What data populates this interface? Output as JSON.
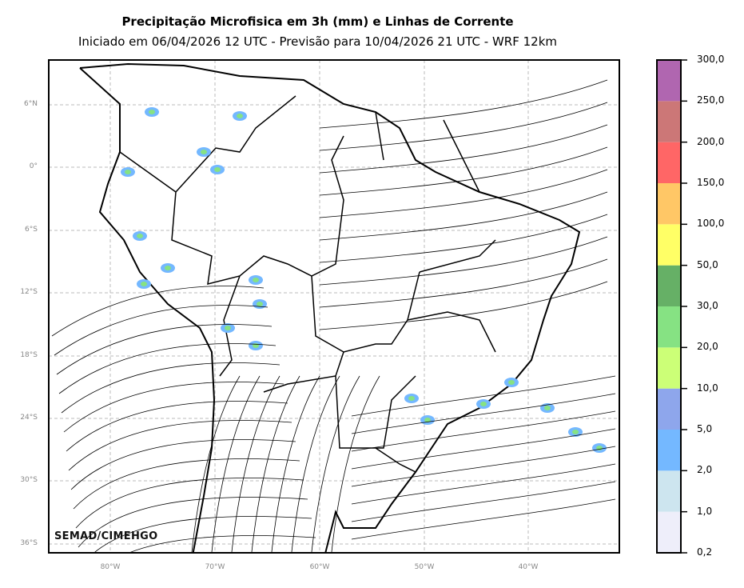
{
  "header": {
    "title": "Precipitação Microfisica em 3h (mm) e Linhas de Corrente",
    "subtitle": "Iniciado em 06/04/2026 12 UTC - Previsão para 10/04/2026 21 UTC - WRF 12km"
  },
  "map": {
    "lat_labels": [
      "6°N",
      "0°",
      "6°S",
      "12°S",
      "18°S",
      "24°S",
      "30°S",
      "36°S"
    ],
    "lon_labels": [
      "80°W",
      "70°W",
      "60°W",
      "50°W",
      "40°W"
    ],
    "watermark": "SEMAD/CIMEHGO"
  },
  "colorbar": {
    "labels": [
      "0,2",
      "1,0",
      "2,0",
      "5,0",
      "10,0",
      "20,0",
      "30,0",
      "50,0",
      "100,0",
      "150,0",
      "200,0",
      "250,0",
      "300,0"
    ],
    "colors": [
      "#eeeefa",
      "#cde5ef",
      "#74b8ff",
      "#8ea6ec",
      "#ccff77",
      "#86e283",
      "#66b066",
      "#ffff66",
      "#ffc766",
      "#ff6666",
      "#cc7777",
      "#b066b0"
    ]
  }
}
